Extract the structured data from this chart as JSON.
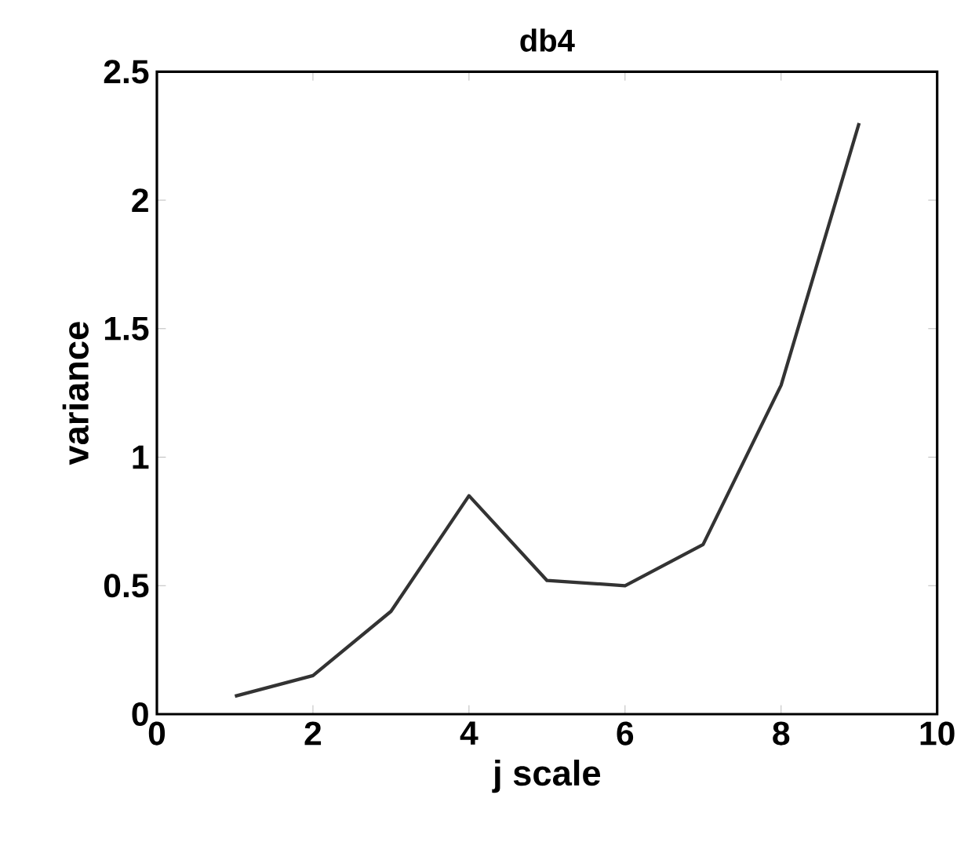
{
  "chart_data": {
    "type": "line",
    "title": "db4",
    "xlabel": "j scale",
    "ylabel": "variance",
    "x": [
      1,
      2,
      3,
      4,
      5,
      6,
      7,
      8,
      9
    ],
    "series": [
      {
        "color": "#333333",
        "values": [
          0.07,
          0.15,
          0.4,
          0.85,
          0.52,
          0.5,
          0.66,
          1.28,
          2.3
        ]
      }
    ],
    "xlim": [
      0,
      10
    ],
    "ylim": [
      0,
      2.5
    ],
    "xticks": [
      0,
      2,
      4,
      6,
      8,
      10
    ],
    "yticks": [
      0,
      0.5,
      1,
      1.5,
      2,
      2.5
    ],
    "grid": false,
    "marker": "none",
    "line_style": "solid"
  }
}
